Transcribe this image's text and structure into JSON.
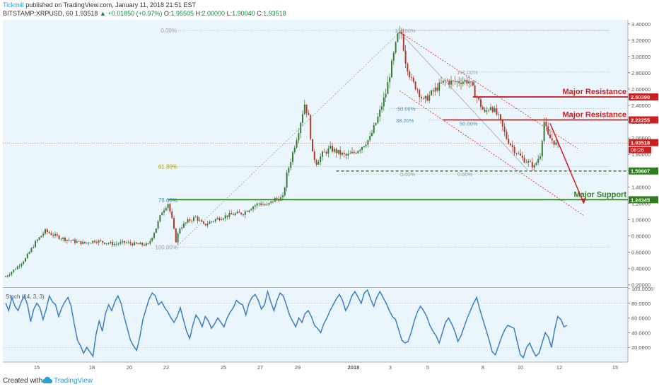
{
  "header": {
    "publisher": "Tickmill",
    "published_text": "published on TradingView.com, January 11, 2018 21:51 EST",
    "symbol": "BITSTAMP:XRPUSD, 60",
    "last": "1.93518",
    "change": "▲ +0.01850 (+0.97%)",
    "open_label": "O:",
    "open": "1.95505",
    "high_label": "H:",
    "high": "2.00000",
    "low_label": "L:",
    "low": "1.90040",
    "close_label": "C:",
    "close": "1.93518"
  },
  "footer": {
    "created_with": "Created with",
    "brand": "TradingView"
  },
  "colors": {
    "background": "#eaf6fb",
    "candle_up": "#3a7a3a",
    "candle_down": "#b23a2a",
    "resistance": "#cc1f1f",
    "support": "#2e7d1e",
    "fib_label": "#9aa0a6",
    "stoch": "#3b7ec6",
    "price_tag": "#cc1f1f",
    "support_tag": "#2e7d1e"
  },
  "chart_data": [
    {
      "type": "candlestick",
      "title": "",
      "x_ticks": [
        "15",
        "18",
        "20",
        "22",
        "25",
        "27",
        "29",
        "2018",
        "3",
        "5",
        "8",
        "10",
        "12",
        "15"
      ],
      "y_ticks": [
        "3.40000",
        "3.20000",
        "3.00000",
        "2.80000",
        "2.60000",
        "2.40000",
        "2.20000",
        "2.00000",
        "1.80000",
        "1.60000",
        "1.40000",
        "1.20000",
        "1.00000",
        "0.80000",
        "0.60000",
        "0.40000",
        "0.20000"
      ],
      "ylim": [
        0.18,
        3.45
      ],
      "price_path": [
        [
          0,
          0.3
        ],
        [
          5,
          0.4
        ],
        [
          10,
          0.52
        ],
        [
          15,
          0.72
        ],
        [
          20,
          0.86
        ],
        [
          25,
          0.8
        ],
        [
          30,
          0.76
        ],
        [
          35,
          0.73
        ],
        [
          40,
          0.71
        ],
        [
          45,
          0.74
        ],
        [
          50,
          0.72
        ],
        [
          55,
          0.7
        ],
        [
          60,
          0.72
        ],
        [
          65,
          0.7
        ],
        [
          72,
          0.69
        ],
        [
          76,
          0.9
        ],
        [
          79,
          1.1
        ],
        [
          82,
          1.2
        ],
        [
          84,
          1.0
        ],
        [
          86,
          0.74
        ],
        [
          88,
          0.9
        ],
        [
          92,
          0.98
        ],
        [
          96,
          1.03
        ],
        [
          100,
          0.93
        ],
        [
          104,
          0.98
        ],
        [
          108,
          1.02
        ],
        [
          112,
          1.05
        ],
        [
          116,
          1.07
        ],
        [
          120,
          1.08
        ],
        [
          124,
          1.15
        ],
        [
          128,
          1.2
        ],
        [
          132,
          1.17
        ],
        [
          136,
          1.25
        ],
        [
          140,
          1.27
        ],
        [
          142,
          1.55
        ],
        [
          145,
          1.82
        ],
        [
          148,
          2.1
        ],
        [
          151,
          2.42
        ],
        [
          153,
          2.25
        ],
        [
          155,
          1.8
        ],
        [
          157,
          1.7
        ],
        [
          160,
          1.8
        ],
        [
          164,
          1.87
        ],
        [
          168,
          1.82
        ],
        [
          172,
          1.78
        ],
        [
          176,
          1.82
        ],
        [
          180,
          1.9
        ],
        [
          184,
          2.0
        ],
        [
          188,
          2.25
        ],
        [
          192,
          2.55
        ],
        [
          195,
          2.9
        ],
        [
          198,
          3.25
        ],
        [
          200,
          3.28
        ],
        [
          202,
          2.95
        ],
        [
          205,
          2.7
        ],
        [
          208,
          2.6
        ],
        [
          211,
          2.45
        ],
        [
          214,
          2.52
        ],
        [
          218,
          2.62
        ],
        [
          222,
          2.7
        ],
        [
          226,
          2.68
        ],
        [
          230,
          2.7
        ],
        [
          234,
          2.7
        ],
        [
          238,
          2.5
        ],
        [
          242,
          2.3
        ],
        [
          245,
          2.4
        ],
        [
          249,
          2.25
        ],
        [
          253,
          2.0
        ],
        [
          257,
          1.85
        ],
        [
          261,
          1.75
        ],
        [
          264,
          1.7
        ],
        [
          267,
          1.65
        ],
        [
          270,
          1.8
        ],
        [
          272,
          2.2
        ],
        [
          274,
          2.02
        ],
        [
          277,
          1.95
        ],
        [
          279,
          1.9
        ]
      ],
      "last_price": 1.93518,
      "fibonacci_retracement_1": [
        {
          "label": "0.00%",
          "value": 3.32
        },
        {
          "label": "61.80%",
          "value": 1.65
        },
        {
          "label": "78.60%",
          "value": 1.24
        },
        {
          "label": "100.00%",
          "value": 0.66
        }
      ],
      "fibonacci_retracement_2": [
        {
          "label": "100.00%",
          "value": 3.32
        },
        {
          "label": "100.00%",
          "value": 2.81
        },
        {
          "label": "50.00%",
          "value": 2.36
        },
        {
          "label": "38.20%",
          "value": 2.22
        },
        {
          "label": "50.00%",
          "value": 2.18
        },
        {
          "label": "0.00%",
          "value": 1.56
        },
        {
          "label": "0.00%",
          "value": 1.56
        }
      ],
      "levels": [
        {
          "label": "Major Resistance",
          "value": 2.5039,
          "tag": "2.50390",
          "role": "resistance"
        },
        {
          "label": "Major Resistance",
          "value": 2.22255,
          "tag": "2.22255",
          "role": "resistance"
        },
        {
          "label": "Major Support",
          "value": 1.24345,
          "tag": "1.24345",
          "role": "support"
        },
        {
          "label": "",
          "value": 1.59607,
          "tag": "1.59607",
          "role": "support-dashed"
        }
      ],
      "price_tag": "1.93518",
      "countdown_tag": "08:26"
    },
    {
      "type": "line",
      "title": "Stoch (14, 3, 3)",
      "y_ticks": [
        "100.0000",
        "80.0000",
        "60.0000",
        "40.0000",
        "20.0000"
      ],
      "ylim": [
        0,
        100
      ],
      "values": [
        80,
        70,
        88,
        76,
        70,
        82,
        90,
        78,
        55,
        72,
        80,
        74,
        58,
        72,
        90,
        82,
        78,
        62,
        74,
        82,
        88,
        76,
        52,
        30,
        22,
        12,
        20,
        14,
        8,
        38,
        56,
        42,
        66,
        78,
        70,
        82,
        90,
        80,
        62,
        46,
        30,
        22,
        16,
        34,
        58,
        72,
        86,
        94,
        90,
        78,
        82,
        74,
        68,
        60,
        54,
        62,
        74,
        58,
        42,
        32,
        50,
        64,
        58,
        48,
        62,
        56,
        46,
        52,
        60,
        54,
        48,
        60,
        68,
        74,
        84,
        80,
        78,
        64,
        80,
        88,
        92,
        84,
        72,
        78,
        96,
        82,
        70,
        84,
        94,
        90,
        78,
        64,
        56,
        48,
        60,
        54,
        66,
        70,
        62,
        50,
        46,
        40,
        52,
        60,
        70,
        78,
        86,
        92,
        84,
        70,
        78,
        90,
        96,
        88,
        80,
        94,
        98,
        86,
        76,
        88,
        96,
        88,
        80,
        70,
        62,
        58,
        44,
        30,
        26,
        28,
        40,
        56,
        68,
        76,
        70,
        62,
        50,
        42,
        36,
        26,
        40,
        54,
        60,
        52,
        42,
        28,
        36,
        48,
        60,
        70,
        80,
        88,
        72,
        58,
        44,
        30,
        14,
        10,
        22,
        34,
        44,
        50,
        48,
        46,
        28,
        10,
        6,
        20,
        26,
        16,
        8,
        12,
        26,
        40,
        34,
        20,
        44,
        62,
        58,
        48,
        50
      ]
    }
  ]
}
